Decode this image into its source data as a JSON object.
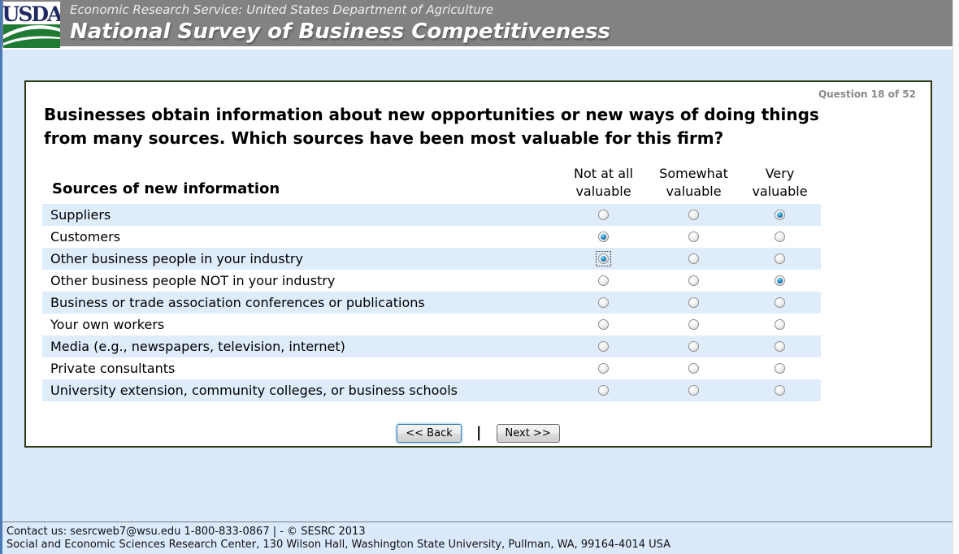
{
  "header": {
    "logo_text": "USDA",
    "agency_line": "Economic Research Service: United States Department of Agriculture",
    "survey_title": "National Survey of Business Competitiveness"
  },
  "panel": {
    "question_counter": "Question 18 of 52",
    "question_text": "Businesses obtain information about new opportunities or new ways of doing things from many sources. Which sources have been most valuable for this firm?",
    "table": {
      "row_header": "Sources of new information",
      "columns": [
        {
          "line1": "Not at all",
          "line2": "valuable"
        },
        {
          "line1": "Somewhat",
          "line2": "valuable"
        },
        {
          "line1": "Very",
          "line2": "valuable"
        }
      ],
      "rows": [
        {
          "label": "Suppliers",
          "selected": 2,
          "focused": null
        },
        {
          "label": "Customers",
          "selected": 0,
          "focused": null
        },
        {
          "label": "Other business people in your industry",
          "selected": 0,
          "focused": 0
        },
        {
          "label": "Other business people NOT in your industry",
          "selected": 2,
          "focused": null
        },
        {
          "label": "Business or trade association conferences or publications",
          "selected": null,
          "focused": null
        },
        {
          "label": "Your own workers",
          "selected": null,
          "focused": null
        },
        {
          "label": "Media (e.g., newspapers, television, internet)",
          "selected": null,
          "focused": null
        },
        {
          "label": "Private consultants",
          "selected": null,
          "focused": null
        },
        {
          "label": "University extension, community colleges, or business schools",
          "selected": null,
          "focused": null
        }
      ]
    },
    "buttons": {
      "back": "<< Back",
      "separator": "|",
      "next": "Next >>"
    }
  },
  "footer": {
    "line1": "Contact us: sesrcweb7@wsu.edu 1-800-833-0867 | - © SESRC 2013",
    "line2": "Social and Economic Sciences Research Center, 130 Wilson Hall, Washington State University, Pullman, WA, 99164-4014 USA"
  },
  "colors": {
    "header_gray": "#828282",
    "page_background": "#dbe9fc",
    "row_stripe": "#dfecfc",
    "panel_border": "#2e3b12",
    "radio_dot_blue": "#1464a0",
    "focused_button_border": "#3c7fb1",
    "usda_navy": "#1f2a63",
    "usda_green": "#1f7a34"
  }
}
